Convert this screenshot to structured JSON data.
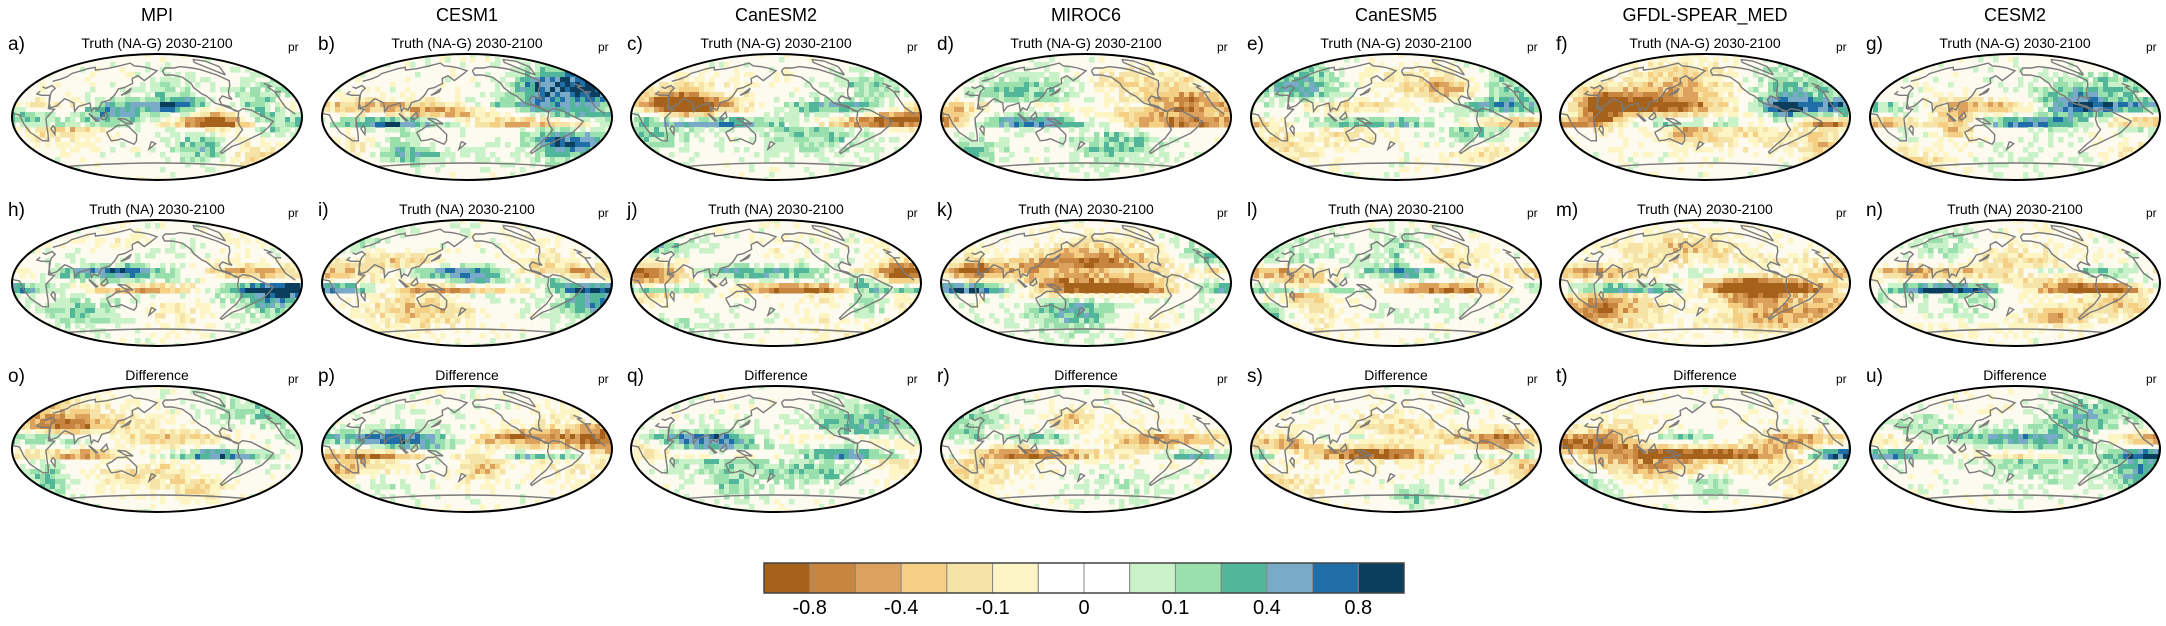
{
  "models": [
    "MPI",
    "CESM1",
    "CanESM2",
    "MIROC6",
    "CanESM5",
    "GFDL-SPEAR_MED",
    "CESM2"
  ],
  "variable": "pr",
  "row_titles": [
    "Truth (NA-G) 2030-2100",
    "Truth (NA) 2030-2100",
    "Difference"
  ],
  "panel_labels": [
    [
      "a)",
      "b)",
      "c)",
      "d)",
      "e)",
      "f)",
      "g)"
    ],
    [
      "h)",
      "i)",
      "j)",
      "k)",
      "l)",
      "m)",
      "n)"
    ],
    [
      "o)",
      "p)",
      "q)",
      "r)",
      "s)",
      "t)",
      "u)"
    ]
  ],
  "colorbar": {
    "colors": [
      "#a6611a",
      "#c8853f",
      "#dda15e",
      "#f5cf84",
      "#f6e3a8",
      "#fdf5c4",
      "#ffffff",
      "#ffffff",
      "#c9f2c9",
      "#99e0ad",
      "#52b79a",
      "#79abc9",
      "#1f6ea8",
      "#0b3d5c"
    ],
    "tick_labels": [
      "-0.8",
      "-0.4",
      "-0.1",
      "0",
      "0.1",
      "0.4",
      "0.8"
    ]
  }
}
